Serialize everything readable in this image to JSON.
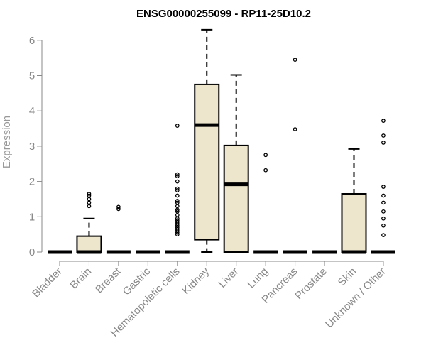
{
  "chart_data": {
    "type": "boxplot",
    "title": "ENSG00000255099 - RP11-25D10.2",
    "xlabel": "",
    "ylabel": "Expression",
    "ylim": [
      0,
      6.3
    ],
    "yticks": [
      0,
      1,
      2,
      3,
      4,
      5,
      6
    ],
    "box_color": "#ede6cc",
    "categories": [
      "Bladder",
      "Brain",
      "Breast",
      "Gastric",
      "Hematopoietic cells",
      "Kidney",
      "Liver",
      "Lung",
      "Pancreas",
      "Prostate",
      "Skin",
      "Unknown / Other"
    ],
    "boxes": [
      {
        "whisker_low": 0,
        "q1": 0,
        "median": 0,
        "q3": 0,
        "whisker_high": 0,
        "outliers": []
      },
      {
        "whisker_low": 0,
        "q1": 0,
        "median": 0,
        "q3": 0.45,
        "whisker_high": 0.95,
        "outliers": [
          1.3,
          1.4,
          1.5,
          1.6,
          1.65
        ]
      },
      {
        "whisker_low": 0,
        "q1": 0,
        "median": 0,
        "q3": 0,
        "whisker_high": 0,
        "outliers": [
          1.22,
          1.28
        ]
      },
      {
        "whisker_low": 0,
        "q1": 0,
        "median": 0,
        "q3": 0,
        "whisker_high": 0,
        "outliers": []
      },
      {
        "whisker_low": 0,
        "q1": 0,
        "median": 0,
        "q3": 0,
        "whisker_high": 0,
        "outliers": [
          0.5,
          0.55,
          0.6,
          0.65,
          0.7,
          0.75,
          0.8,
          0.85,
          0.9,
          0.95,
          1.05,
          1.15,
          1.2,
          1.3,
          1.4,
          1.45,
          1.6,
          1.75,
          1.8,
          2.0,
          2.15,
          2.2,
          3.58
        ]
      },
      {
        "whisker_low": 0,
        "q1": 0.35,
        "median": 3.6,
        "q3": 4.75,
        "whisker_high": 6.3,
        "outliers": []
      },
      {
        "whisker_low": 0,
        "q1": 0,
        "median": 1.92,
        "q3": 3.02,
        "whisker_high": 5.02,
        "outliers": []
      },
      {
        "whisker_low": 0,
        "q1": 0,
        "median": 0,
        "q3": 0,
        "whisker_high": 0,
        "outliers": [
          2.32,
          2.75
        ]
      },
      {
        "whisker_low": 0,
        "q1": 0,
        "median": 0,
        "q3": 0,
        "whisker_high": 0,
        "outliers": [
          3.48,
          5.45
        ]
      },
      {
        "whisker_low": 0,
        "q1": 0,
        "median": 0,
        "q3": 0,
        "whisker_high": 0,
        "outliers": []
      },
      {
        "whisker_low": 0,
        "q1": 0,
        "median": 0,
        "q3": 1.65,
        "whisker_high": 2.92,
        "outliers": []
      },
      {
        "whisker_low": 0,
        "q1": 0,
        "median": 0,
        "q3": 0,
        "whisker_high": 0,
        "outliers": [
          0.48,
          0.75,
          0.95,
          1.15,
          1.4,
          1.6,
          1.85,
          3.1,
          3.3,
          3.72
        ]
      }
    ]
  }
}
